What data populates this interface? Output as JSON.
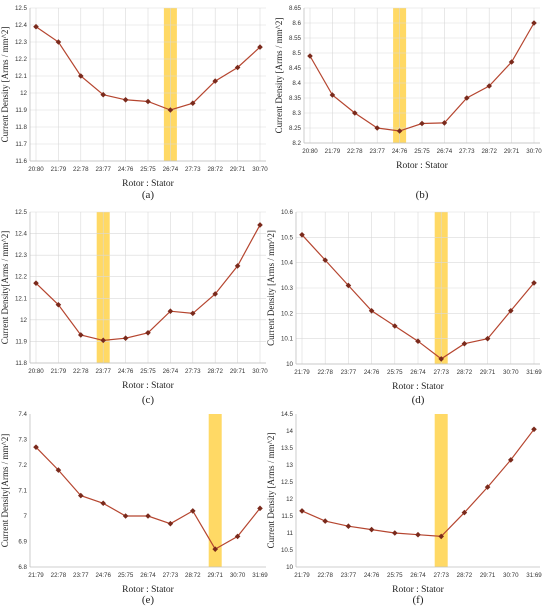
{
  "colors": {
    "line": "#b5452f",
    "marker": "#7a2a1c",
    "highlight": "#ffd24a",
    "grid": "#d9d9d9"
  },
  "chart_data": [
    {
      "id": "a",
      "caption": "(a)",
      "type": "line",
      "categories": [
        "20:80",
        "21:79",
        "22:78",
        "23:77",
        "24:76",
        "25:75",
        "26:74",
        "27:73",
        "28:72",
        "29:71",
        "30:70"
      ],
      "values": [
        12.39,
        12.3,
        12.1,
        11.99,
        11.96,
        11.95,
        11.9,
        11.94,
        12.07,
        12.15,
        12.27
      ],
      "yticks": [
        "11.6",
        "11.7",
        "11.8",
        "11.9",
        "12",
        "12.1",
        "12.2",
        "12.3",
        "12.4",
        "12.5"
      ],
      "ylim": [
        11.6,
        12.5
      ],
      "highlight_category": "26:74",
      "xlabel": "Rotor : Stator",
      "ylabel": "Current Density [Arms / mm^2]",
      "grid": true
    },
    {
      "id": "b",
      "caption": "(b)",
      "type": "line",
      "categories": [
        "20:80",
        "21:79",
        "22:78",
        "23:77",
        "24:76",
        "25:75",
        "26:74",
        "27:73",
        "28:72",
        "29:71",
        "30:70"
      ],
      "values": [
        8.49,
        8.36,
        8.3,
        8.25,
        8.24,
        8.265,
        8.267,
        8.35,
        8.39,
        8.47,
        8.6
      ],
      "yticks": [
        "8.2",
        "8.25",
        "8.3",
        "8.35",
        "8.4",
        "8.45",
        "8.5",
        "8.55",
        "8.6",
        "8.65"
      ],
      "ylim": [
        8.2,
        8.65
      ],
      "highlight_category": "24:76",
      "xlabel": "Rotor : Stator",
      "ylabel": "Current Density [Arms / mm^2]",
      "grid": true
    },
    {
      "id": "c",
      "caption": "(c)",
      "type": "line",
      "categories": [
        "20:80",
        "21:79",
        "22:78",
        "23:77",
        "24:76",
        "25:75",
        "26:74",
        "27:73",
        "28:72",
        "29:71",
        "30:70"
      ],
      "values": [
        12.17,
        12.07,
        11.93,
        11.905,
        11.915,
        11.94,
        12.04,
        12.03,
        12.12,
        12.25,
        12.44
      ],
      "yticks": [
        "11.8",
        "11.9",
        "12",
        "12.1",
        "12.2",
        "12.3",
        "12.4",
        "12.5"
      ],
      "ylim": [
        11.8,
        12.5
      ],
      "highlight_category": "23:77",
      "xlabel": "Rotor : Stator",
      "ylabel": "Current Density[Arms / mm^2]",
      "grid": true
    },
    {
      "id": "d",
      "caption": "(d)",
      "type": "line",
      "categories": [
        "21:79",
        "22:78",
        "23:77",
        "24:76",
        "25:75",
        "26:74",
        "27:73",
        "28:72",
        "29:71",
        "30:70",
        "31:69"
      ],
      "values": [
        10.51,
        10.41,
        10.31,
        10.21,
        10.15,
        10.09,
        10.02,
        10.08,
        10.1,
        10.21,
        10.32
      ],
      "yticks": [
        "10",
        "10.1",
        "10.2",
        "10.3",
        "10.4",
        "10.5",
        "10.6"
      ],
      "ylim": [
        10,
        10.6
      ],
      "highlight_category": "27:73",
      "xlabel": "Rotor : Stator",
      "ylabel": "Current Density [Arms / mm^2]",
      "grid": true
    },
    {
      "id": "e",
      "caption": "(e)",
      "type": "line",
      "categories": [
        "21:79",
        "22:78",
        "23:77",
        "24:76",
        "25:75",
        "26:74",
        "27:73",
        "28:72",
        "29:71",
        "30:70",
        "31:69"
      ],
      "values": [
        7.27,
        7.18,
        7.08,
        7.05,
        7.0,
        7.0,
        6.97,
        7.02,
        6.87,
        6.92,
        7.03
      ],
      "yticks": [
        "6.8",
        "6.9",
        "7",
        "7.1",
        "7.2",
        "7.3",
        "7.4"
      ],
      "ylim": [
        6.8,
        7.4
      ],
      "highlight_category": "29:71",
      "xlabel": "Rotor : Stator",
      "ylabel": "Current Density[Arms / mm^2]",
      "grid": false
    },
    {
      "id": "f",
      "caption": "(f)",
      "type": "line",
      "categories": [
        "21:79",
        "22:78",
        "23:77",
        "24:76",
        "25:75",
        "26:74",
        "27:73",
        "28:72",
        "29:71",
        "30:70",
        "31:69"
      ],
      "values": [
        11.65,
        11.35,
        11.2,
        11.1,
        11.0,
        10.95,
        10.9,
        11.6,
        12.35,
        13.15,
        14.05
      ],
      "yticks": [
        "10",
        "10.5",
        "11",
        "11.5",
        "12",
        "12.5",
        "13",
        "13.5",
        "14",
        "14.5"
      ],
      "ylim": [
        10,
        14.5
      ],
      "highlight_category": "27:73",
      "xlabel": "Rotor : Stator",
      "ylabel": "Current Density [Arms / mm^2]",
      "grid": false
    }
  ]
}
